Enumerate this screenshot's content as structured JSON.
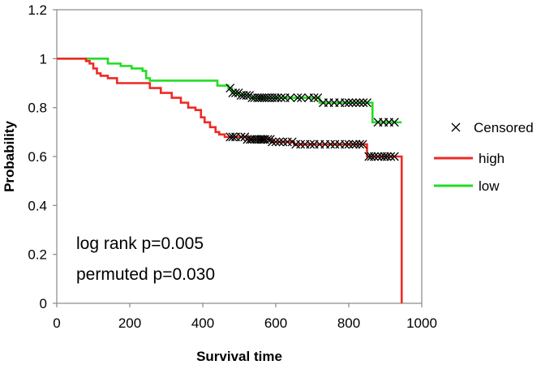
{
  "chart_data": {
    "type": "line",
    "title": "",
    "xlabel": "Survival time",
    "ylabel": "Probability",
    "xlim": [
      0,
      1000
    ],
    "ylim": [
      0,
      1.2
    ],
    "xticks": [
      "0",
      "200",
      "400",
      "600",
      "800",
      "1000"
    ],
    "yticks": [
      "0",
      "0.2",
      "0.4",
      "0.6",
      "0.8",
      "1",
      "1.2"
    ],
    "grid": false,
    "legend_position": "right",
    "legend": [
      "Censored",
      "high",
      "low"
    ],
    "annotations": [
      "log rank p=0.005",
      "permuted p=0.030"
    ],
    "colors": {
      "high": "#ee2a24",
      "low": "#22dd22",
      "censored": "#000000",
      "axis": "#888888"
    },
    "series": [
      {
        "name": "high",
        "steps": [
          [
            0,
            1.0
          ],
          [
            75,
            1.0
          ],
          [
            80,
            0.99
          ],
          [
            90,
            0.98
          ],
          [
            100,
            0.96
          ],
          [
            110,
            0.94
          ],
          [
            120,
            0.93
          ],
          [
            140,
            0.92
          ],
          [
            165,
            0.9
          ],
          [
            230,
            0.9
          ],
          [
            255,
            0.88
          ],
          [
            285,
            0.86
          ],
          [
            315,
            0.84
          ],
          [
            340,
            0.82
          ],
          [
            360,
            0.8
          ],
          [
            380,
            0.79
          ],
          [
            395,
            0.76
          ],
          [
            405,
            0.74
          ],
          [
            420,
            0.72
          ],
          [
            435,
            0.7
          ],
          [
            445,
            0.69
          ],
          [
            460,
            0.68
          ],
          [
            480,
            0.68
          ],
          [
            520,
            0.67
          ],
          [
            590,
            0.66
          ],
          [
            650,
            0.65
          ],
          [
            845,
            0.65
          ],
          [
            850,
            0.6
          ],
          [
            945,
            0.6
          ],
          [
            945,
            0.0
          ]
        ],
        "censored": [
          475,
          482,
          490,
          505,
          515,
          522,
          530,
          535,
          542,
          548,
          555,
          560,
          565,
          570,
          578,
          585,
          590,
          600,
          610,
          620,
          632,
          645,
          655,
          668,
          680,
          695,
          705,
          720,
          735,
          750,
          762,
          775,
          790,
          800,
          812,
          820,
          830,
          838,
          855,
          862,
          870,
          880,
          890,
          898,
          905,
          915,
          925
        ]
      },
      {
        "name": "low",
        "steps": [
          [
            0,
            1.0
          ],
          [
            115,
            1.0
          ],
          [
            140,
            0.98
          ],
          [
            175,
            0.97
          ],
          [
            205,
            0.96
          ],
          [
            235,
            0.95
          ],
          [
            245,
            0.92
          ],
          [
            255,
            0.91
          ],
          [
            420,
            0.91
          ],
          [
            440,
            0.89
          ],
          [
            470,
            0.88
          ],
          [
            480,
            0.86
          ],
          [
            500,
            0.85
          ],
          [
            530,
            0.84
          ],
          [
            710,
            0.84
          ],
          [
            720,
            0.82
          ],
          [
            860,
            0.82
          ],
          [
            865,
            0.74
          ],
          [
            945,
            0.74
          ]
        ],
        "censored": [
          475,
          482,
          490,
          498,
          505,
          512,
          520,
          528,
          535,
          542,
          550,
          556,
          562,
          568,
          575,
          582,
          590,
          598,
          605,
          615,
          625,
          640,
          660,
          670,
          690,
          705,
          715,
          730,
          745,
          760,
          775,
          790,
          800,
          810,
          820,
          830,
          840,
          850,
          880,
          895,
          910,
          925
        ]
      }
    ]
  }
}
